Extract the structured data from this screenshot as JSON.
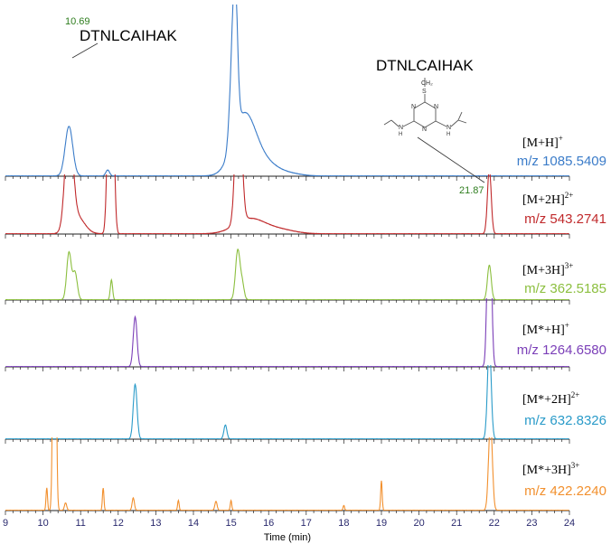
{
  "chart_data": {
    "type": "line",
    "title": "",
    "xlabel": "Time (min)",
    "ylabel": "",
    "xlim": [
      9,
      24
    ],
    "x_ticks": [
      "9",
      "10",
      "11",
      "12",
      "13",
      "14",
      "15",
      "16",
      "17",
      "18",
      "19",
      "20",
      "21",
      "22",
      "23",
      "24"
    ],
    "annotations": {
      "peak1_rt": "10.69",
      "peak2_rt": "21.87",
      "peptide1": "DTNLCAIHAK",
      "peptide2": "DTNLCAIHAK",
      "structure_labels": {
        "ch2": "CH₂",
        "s": "S",
        "n": "N",
        "h": "H"
      }
    },
    "series": [
      {
        "name": "m/z 1085.5409",
        "ion": "[M+H]",
        "ion_sup": "+",
        "color": "#3b7cc9",
        "peaks": [
          [
            10.69,
            1.0,
            0.1
          ],
          [
            11.72,
            0.12,
            0.05
          ],
          [
            15.05,
            1.8,
            0.08
          ],
          [
            15.12,
            1.8,
            0.06
          ],
          [
            15.35,
            1.2,
            0.3
          ],
          [
            15.9,
            0.25,
            0.35
          ],
          [
            16.6,
            0.04,
            0.3
          ]
        ]
      },
      {
        "name": "m/z 543.2741",
        "ion": "[M+2H]",
        "ion_sup": "2+",
        "color": "#c0292b",
        "peaks": [
          [
            10.69,
            2.2,
            0.1
          ],
          [
            10.9,
            0.35,
            0.2
          ],
          [
            11.75,
            2.7,
            0.05
          ],
          [
            11.85,
            2.7,
            0.05
          ],
          [
            15.2,
            3.1,
            0.08
          ],
          [
            15.5,
            0.3,
            0.4
          ],
          [
            16.3,
            0.08,
            0.4
          ],
          [
            21.87,
            1.3,
            0.05
          ]
        ]
      },
      {
        "name": "m/z 362.5185",
        "ion": "[M+3H]",
        "ion_sup": "3+",
        "color": "#8cbf3f",
        "peaks": [
          [
            10.69,
            0.95,
            0.06
          ],
          [
            10.85,
            0.55,
            0.06
          ],
          [
            11.82,
            0.4,
            0.03
          ],
          [
            15.18,
            1.0,
            0.06
          ],
          [
            15.3,
            0.3,
            0.05
          ],
          [
            21.87,
            0.7,
            0.05
          ]
        ]
      },
      {
        "name": "m/z 1264.6580",
        "ion": "[M*+H]",
        "ion_sup": "+",
        "color": "#7b3fb8",
        "peaks": [
          [
            12.45,
            1.0,
            0.05
          ],
          [
            21.87,
            4.3,
            0.05
          ]
        ]
      },
      {
        "name": "m/z 632.8326",
        "ion": "[M*+2H]",
        "ion_sup": "2+",
        "color": "#2a9bc9",
        "peaks": [
          [
            12.45,
            1.1,
            0.05
          ],
          [
            14.85,
            0.28,
            0.04
          ],
          [
            21.87,
            1.9,
            0.05
          ]
        ]
      },
      {
        "name": "m/z 422.2240",
        "ion": "[M*+3H]",
        "ion_sup": "3+",
        "color": "#f2902e",
        "peaks": [
          [
            10.28,
            3.8,
            0.03
          ],
          [
            10.33,
            3.8,
            0.03
          ],
          [
            10.1,
            0.45,
            0.02
          ],
          [
            10.6,
            0.15,
            0.03
          ],
          [
            11.6,
            0.45,
            0.02
          ],
          [
            12.4,
            0.25,
            0.03
          ],
          [
            13.6,
            0.2,
            0.02
          ],
          [
            14.6,
            0.18,
            0.03
          ],
          [
            15.0,
            0.2,
            0.02
          ],
          [
            18.0,
            0.1,
            0.02
          ],
          [
            19.0,
            0.6,
            0.02
          ],
          [
            21.9,
            1.8,
            0.05
          ]
        ]
      }
    ]
  }
}
